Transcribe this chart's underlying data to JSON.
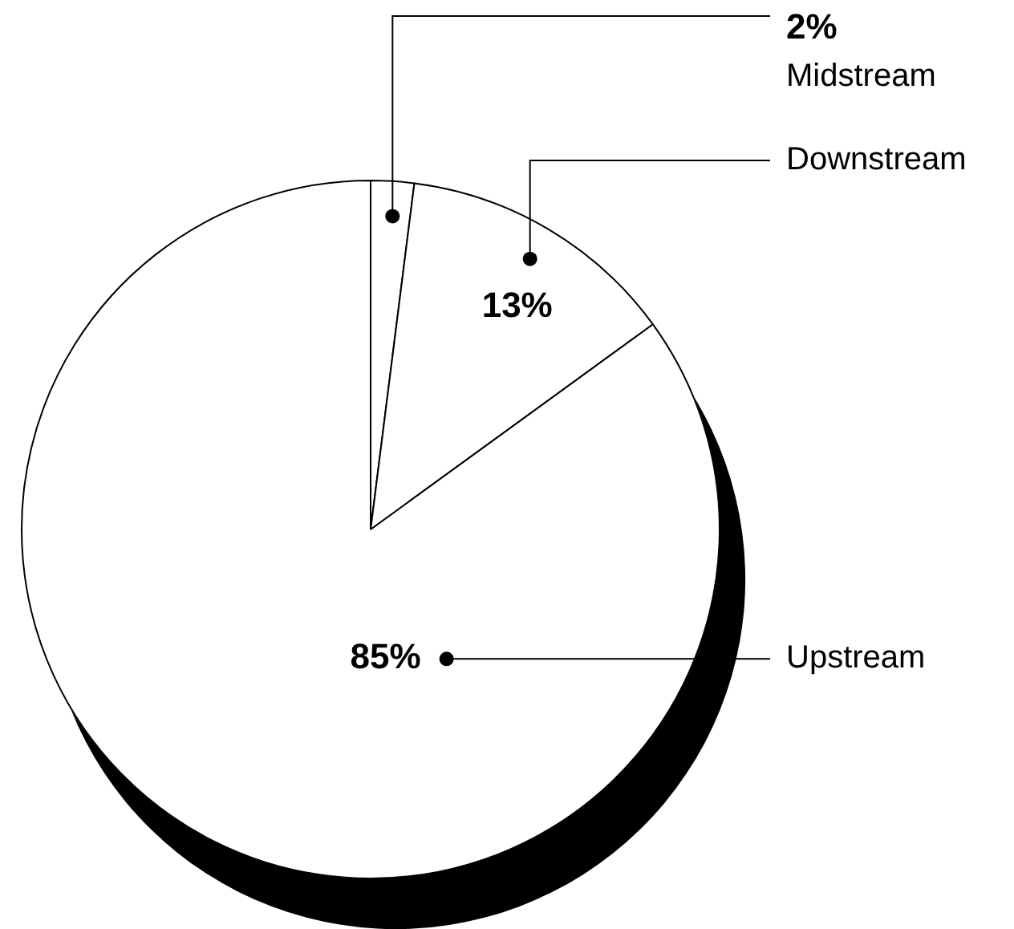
{
  "chart_data": {
    "type": "pie",
    "categories": [
      "Midstream",
      "Downstream",
      "Upstream"
    ],
    "values": [
      2,
      13,
      85
    ],
    "value_labels": [
      "2%",
      "13%",
      "85%"
    ],
    "colors": [
      "#ffffff",
      "#ffffff",
      "#ffffff"
    ]
  }
}
